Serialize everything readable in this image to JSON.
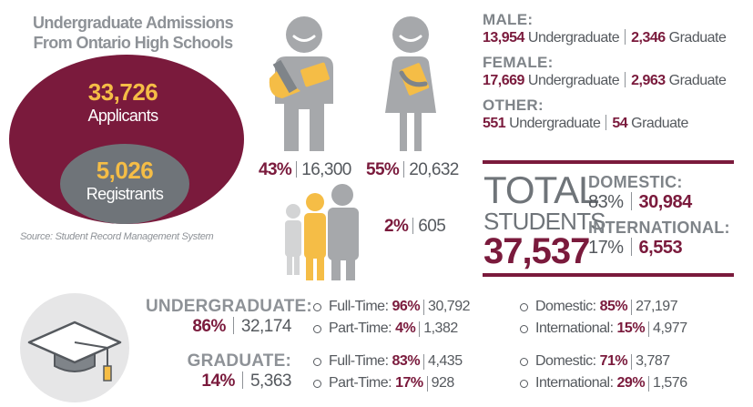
{
  "admissions": {
    "title_line1": "Undergraduate Admissions",
    "title_line2": "From Ontario High Schools",
    "applicants_value": "33,726",
    "applicants_label": "Applicants",
    "registrants_value": "5,026",
    "registrants_label": "Registrants",
    "source": "Source: Student Record Management System"
  },
  "genders": {
    "male": {
      "pct": "43%",
      "count": "16,300"
    },
    "female": {
      "pct": "55%",
      "count": "20,632"
    },
    "other": {
      "pct": "2%",
      "count": "605"
    }
  },
  "gender_breakdown": [
    {
      "heading": "MALE:",
      "ug": "13,954",
      "ug_label": "Undergraduate",
      "grad": "2,346",
      "grad_label": "Graduate"
    },
    {
      "heading": "FEMALE:",
      "ug": "17,669",
      "ug_label": "Undergraduate",
      "grad": "2,963",
      "grad_label": "Graduate"
    },
    {
      "heading": "OTHER:",
      "ug": "551",
      "ug_label": "Undergraduate",
      "grad": "54",
      "grad_label": "Graduate"
    }
  ],
  "total": {
    "word1": "TOTAL",
    "word2": "STUDENTS",
    "value": "37,537",
    "domestic_heading": "DOMESTIC:",
    "domestic_pct": "83%",
    "domestic_count": "30,984",
    "international_heading": "INTERNATIONAL:",
    "international_pct": "17%",
    "international_count": "6,553"
  },
  "levels": [
    {
      "heading": "UNDERGRADUATE:",
      "pct": "86%",
      "count": "32,174",
      "items": [
        {
          "label": "Full-Time:",
          "pct": "96%",
          "count": "30,792"
        },
        {
          "label": "Part-Time:",
          "pct": "4%",
          "count": "1,382"
        },
        {
          "label": "Domestic:",
          "pct": "85%",
          "count": "27,197"
        },
        {
          "label": "International:",
          "pct": "15%",
          "count": "4,977"
        }
      ]
    },
    {
      "heading": "GRADUATE:",
      "pct": "14%",
      "count": "5,363",
      "items": [
        {
          "label": "Full-Time:",
          "pct": "83%",
          "count": "4,435"
        },
        {
          "label": "Part-Time:",
          "pct": "17%",
          "count": "928"
        },
        {
          "label": "Domestic:",
          "pct": "71%",
          "count": "3,787"
        },
        {
          "label": "International:",
          "pct": "29%",
          "count": "1,576"
        }
      ]
    }
  ],
  "icons": {
    "male": "male-student-icon",
    "female": "female-student-icon",
    "group": "people-group-icon",
    "cap": "graduation-cap-icon"
  },
  "colors": {
    "maroon": "#7a1a3c",
    "gray": "#6f7479",
    "light_gray": "#c9cacb",
    "gold": "#f5bd46"
  }
}
